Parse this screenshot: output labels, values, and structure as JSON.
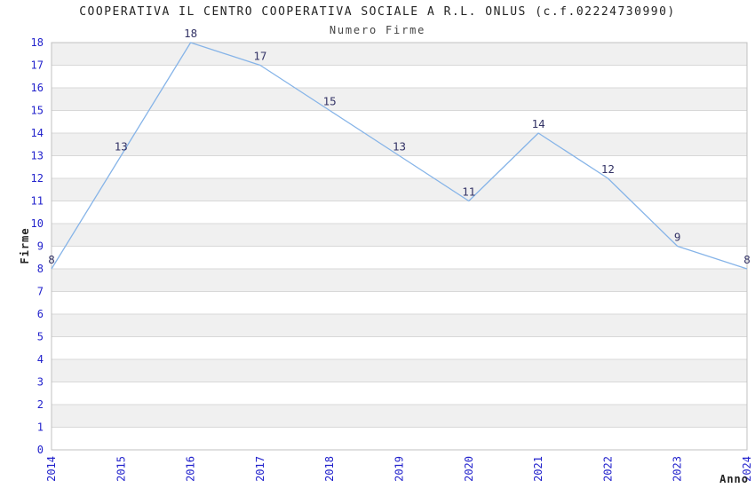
{
  "chart_data": {
    "type": "line",
    "title": "COOPERATIVA IL CENTRO COOPERATIVA SOCIALE A R.L. ONLUS (c.f.02224730990)",
    "subtitle": "Numero Firme",
    "xlabel": "Anno",
    "ylabel": "Firme",
    "categories": [
      "2014",
      "2015",
      "2016",
      "2017",
      "2018",
      "2019",
      "2020",
      "2021",
      "2022",
      "2023",
      "2024"
    ],
    "values": [
      8,
      13,
      18,
      17,
      15,
      13,
      11,
      14,
      12,
      9,
      8
    ],
    "ylim": [
      0,
      18
    ],
    "ytick_step": 1,
    "grid": true,
    "legend_position": "none",
    "band_fill": "alternate-horizontal",
    "colors": {
      "line": "#86b4e8",
      "tick_label": "#2222cc",
      "data_label": "#333366",
      "band": "#f0f0f0",
      "gridline": "#d8d8d8",
      "border": "#c0c0c0",
      "title": "#222222",
      "subtitle": "#444444",
      "axis_title": "#222222",
      "background": "#ffffff"
    }
  }
}
